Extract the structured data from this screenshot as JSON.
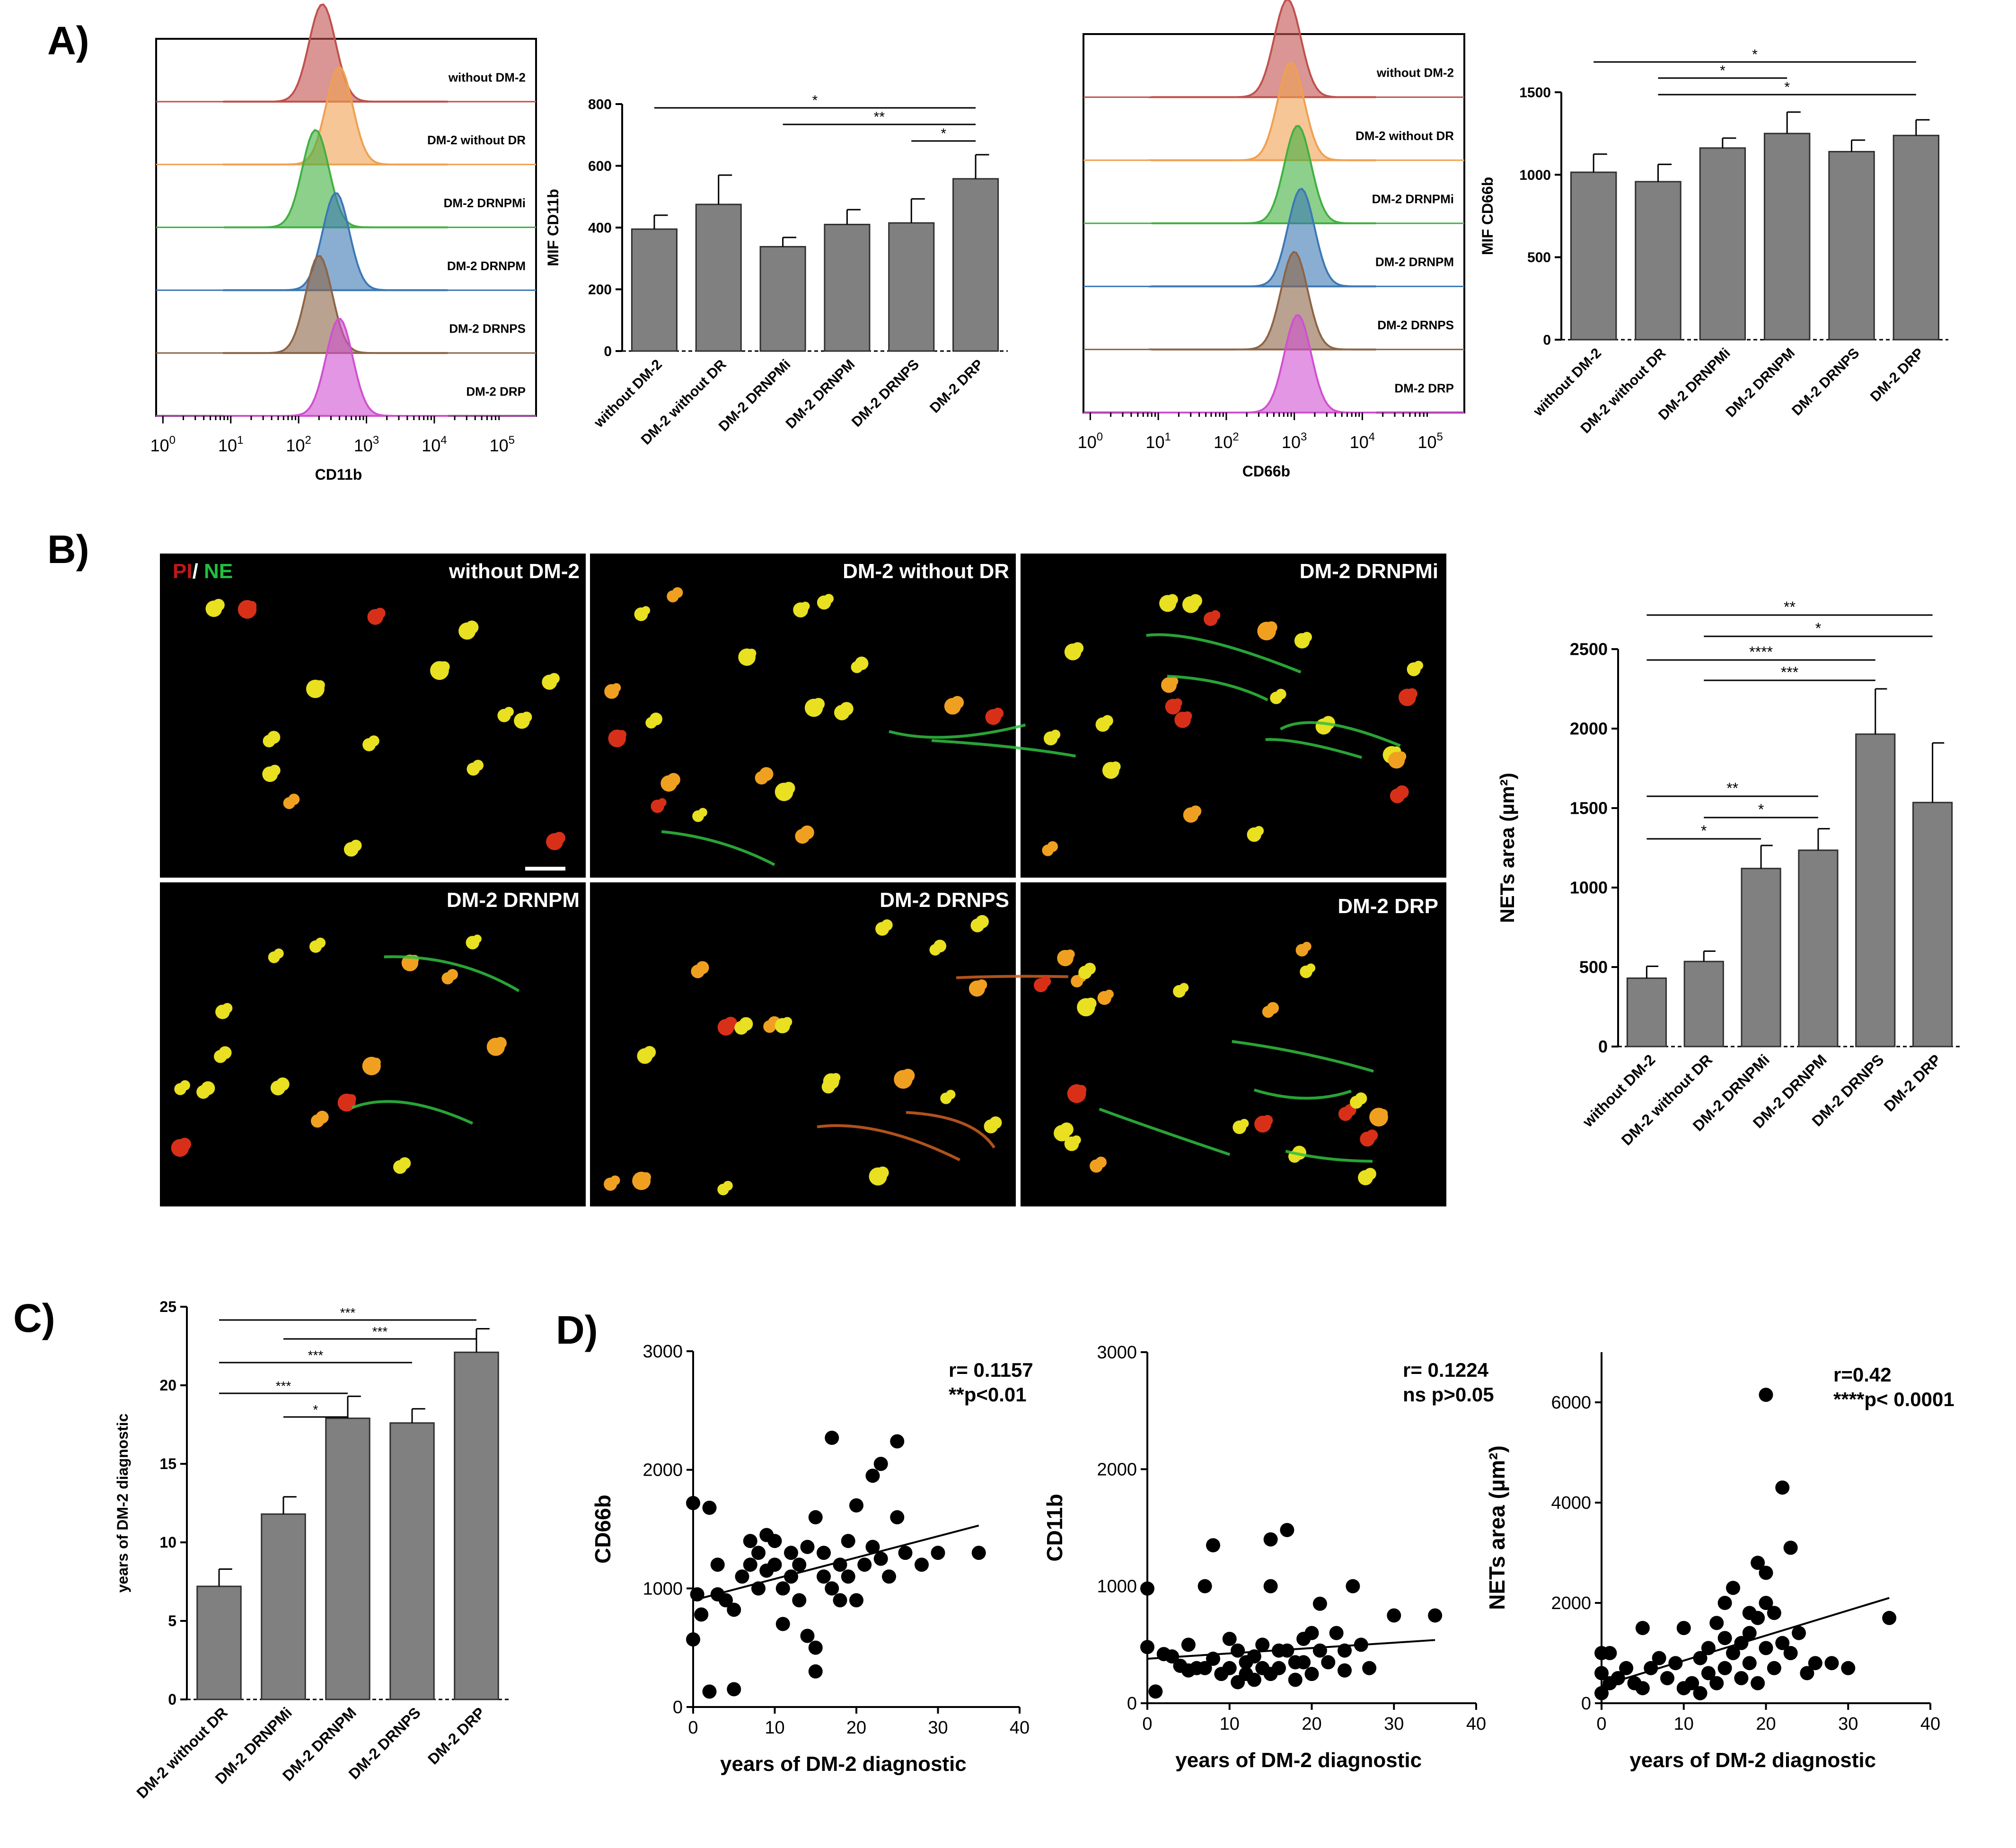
{
  "panel_labels": {
    "a": "A)",
    "b": "B)",
    "c": "C)",
    "d": "D)"
  },
  "histograms": {
    "cd11b": {
      "xlabel": "CD11b",
      "rows": [
        {
          "label": "without DM-2",
          "color": "#C0504D"
        },
        {
          "label": "DM-2 without DR",
          "color": "#F0A050"
        },
        {
          "label": "DM-2 DRNPMi",
          "color": "#40B040"
        },
        {
          "label": "DM-2 DRNPM",
          "color": "#3C78B4"
        },
        {
          "label": "DM-2 DRNPS",
          "color": "#8C6446"
        },
        {
          "label": "DM-2 DRP",
          "color": "#D050D0"
        }
      ],
      "peaks_log10": [
        2.35,
        2.6,
        2.25,
        2.55,
        2.3,
        2.6
      ]
    },
    "cd66b": {
      "xlabel": "CD66b",
      "rows": [
        {
          "label": "without DM-2",
          "color": "#C0504D"
        },
        {
          "label": "DM-2 without DR",
          "color": "#F0A050"
        },
        {
          "label": "DM-2 DRNPMi",
          "color": "#40B040"
        },
        {
          "label": "DM-2 DRNPM",
          "color": "#3C78B4"
        },
        {
          "label": "DM-2 DRNPS",
          "color": "#8C6446"
        },
        {
          "label": "DM-2 DRP",
          "color": "#D050D0"
        }
      ],
      "peaks_log10": [
        2.9,
        2.95,
        3.05,
        3.1,
        3.0,
        3.05
      ]
    },
    "ticks": [
      {
        "base": "10",
        "exp": "0"
      },
      {
        "base": "10",
        "exp": "1"
      },
      {
        "base": "10",
        "exp": "2"
      },
      {
        "base": "10",
        "exp": "3"
      },
      {
        "base": "10",
        "exp": "4"
      },
      {
        "base": "10",
        "exp": "5"
      }
    ]
  },
  "chart_data": [
    {
      "id": "mif-cd11b",
      "type": "bar",
      "categories": [
        "without DM-2",
        "DM-2 without DR",
        "DM-2 DRNPMi",
        "DM-2 DRNPM",
        "DM-2 DRNPS",
        "DM-2 DRP"
      ],
      "values": [
        395,
        475,
        338,
        410,
        415,
        558
      ],
      "errors": [
        45,
        95,
        30,
        48,
        78,
        78
      ],
      "ylabel": "MIF CD11b",
      "ylim": [
        0,
        800
      ],
      "yticks": [
        "0",
        "200",
        "400",
        "600",
        "800"
      ],
      "significance": [
        {
          "from": 0,
          "to": 5,
          "stars": "*"
        },
        {
          "from": 2,
          "to": 5,
          "stars": "**"
        },
        {
          "from": 4,
          "to": 5,
          "stars": "*"
        }
      ]
    },
    {
      "id": "mif-cd66b",
      "type": "bar",
      "categories": [
        "without DM-2",
        "DM-2 without DR",
        "DM-2 DRNPMi",
        "DM-2 DRNPM",
        "DM-2 DRNPS",
        "DM-2 DRP"
      ],
      "values": [
        1015,
        958,
        1162,
        1250,
        1140,
        1238
      ],
      "errors": [
        110,
        105,
        60,
        130,
        70,
        95
      ],
      "ylabel": "MIF CD66b",
      "ylim": [
        0,
        1500
      ],
      "yticks": [
        "0",
        "500",
        "1000",
        "1500"
      ],
      "significance": [
        {
          "from": 0,
          "to": 5,
          "stars": "*"
        },
        {
          "from": 1,
          "to": 3,
          "stars": "*"
        },
        {
          "from": 1,
          "to": 5,
          "stars": "*"
        }
      ]
    },
    {
      "id": "nets-area",
      "type": "bar",
      "categories": [
        "without DM-2",
        "DM-2 without DR",
        "DM-2 DRNPMi",
        "DM-2 DRNPM",
        "DM-2 DRNPS",
        "DM-2 DRP"
      ],
      "values": [
        430,
        535,
        1120,
        1235,
        1965,
        1535
      ],
      "errors": [
        75,
        65,
        145,
        135,
        285,
        375
      ],
      "ylabel": "NETs area (µm²)",
      "ylim": [
        0,
        2500
      ],
      "yticks": [
        "0",
        "500",
        "1000",
        "1500",
        "2000",
        "2500"
      ],
      "significance": [
        {
          "from": 0,
          "to": 5,
          "stars": "**"
        },
        {
          "from": 1,
          "to": 5,
          "stars": "*"
        },
        {
          "from": 0,
          "to": 4,
          "stars": "****"
        },
        {
          "from": 1,
          "to": 4,
          "stars": "***"
        },
        {
          "from": 0,
          "to": 3,
          "stars": "**"
        },
        {
          "from": 1,
          "to": 3,
          "stars": "*"
        },
        {
          "from": 0,
          "to": 2,
          "stars": "*"
        }
      ]
    },
    {
      "id": "years-dm2",
      "type": "bar",
      "categories": [
        "DM-2 without DR",
        "DM-2 DRNPMi",
        "DM-2 DRNPM",
        "DM-2 DRNPS",
        "DM-2 DRP"
      ],
      "values": [
        7.2,
        11.8,
        17.9,
        17.6,
        22.1
      ],
      "errors": [
        1.1,
        1.1,
        1.4,
        0.9,
        1.5
      ],
      "ylabel": "years of DM-2 diagnostic",
      "ylim": [
        0,
        25
      ],
      "yticks": [
        "0",
        "5",
        "10",
        "15",
        "20",
        "25"
      ],
      "significance": [
        {
          "from": 0,
          "to": 4,
          "stars": "***"
        },
        {
          "from": 1,
          "to": 4,
          "stars": "***"
        },
        {
          "from": 0,
          "to": 3,
          "stars": "***"
        },
        {
          "from": 0,
          "to": 2,
          "stars": "***"
        },
        {
          "from": 1,
          "to": 2,
          "stars": "*"
        }
      ]
    },
    {
      "id": "scatter-cd66b",
      "type": "scatter",
      "xlabel": "years of DM-2 diagnostic",
      "ylabel": "CD66b",
      "xlim": [
        0,
        40
      ],
      "ylim": [
        0,
        3000
      ],
      "xticks": [
        "0",
        "10",
        "20",
        "30",
        "40"
      ],
      "yticks": [
        "0",
        "1000",
        "2000",
        "3000"
      ],
      "annotation": [
        "r= 0.1157",
        "**p<0.01"
      ],
      "trend": {
        "x0": 0,
        "y0": 900,
        "x1": 35,
        "y1": 1530
      },
      "points": [
        [
          0,
          1720
        ],
        [
          0,
          570
        ],
        [
          0.5,
          950
        ],
        [
          1,
          780
        ],
        [
          2,
          130
        ],
        [
          2,
          1680
        ],
        [
          3,
          950
        ],
        [
          3,
          1200
        ],
        [
          4,
          900
        ],
        [
          5,
          150
        ],
        [
          5,
          820
        ],
        [
          6,
          1100
        ],
        [
          7,
          1200
        ],
        [
          7,
          1400
        ],
        [
          8,
          1300
        ],
        [
          8,
          1000
        ],
        [
          9,
          1450
        ],
        [
          9,
          1150
        ],
        [
          10,
          1400
        ],
        [
          10,
          1200
        ],
        [
          11,
          700
        ],
        [
          11,
          1000
        ],
        [
          12,
          1300
        ],
        [
          12,
          1100
        ],
        [
          13,
          900
        ],
        [
          13,
          1200
        ],
        [
          14,
          1350
        ],
        [
          14,
          600
        ],
        [
          15,
          1600
        ],
        [
          15,
          500
        ],
        [
          15,
          300
        ],
        [
          16,
          1300
        ],
        [
          16,
          1100
        ],
        [
          17,
          2270
        ],
        [
          17,
          1000
        ],
        [
          18,
          1200
        ],
        [
          18,
          900
        ],
        [
          19,
          1400
        ],
        [
          19,
          1100
        ],
        [
          20,
          1700
        ],
        [
          20,
          900
        ],
        [
          21,
          1200
        ],
        [
          22,
          1350
        ],
        [
          22,
          1950
        ],
        [
          23,
          2050
        ],
        [
          23,
          1250
        ],
        [
          24,
          1100
        ],
        [
          25,
          2240
        ],
        [
          25,
          1600
        ],
        [
          26,
          1300
        ],
        [
          28,
          1200
        ],
        [
          30,
          1300
        ],
        [
          35,
          1300
        ]
      ]
    },
    {
      "id": "scatter-cd11b",
      "type": "scatter",
      "xlabel": "years of DM-2 diagnostic",
      "ylabel": "CD11b",
      "xlim": [
        0,
        40
      ],
      "ylim": [
        0,
        3000
      ],
      "xticks": [
        "0",
        "10",
        "20",
        "30",
        "40"
      ],
      "yticks": [
        "0",
        "1000",
        "2000",
        "3000"
      ],
      "annotation": [
        "r= 0.1224",
        "ns p>0.05"
      ],
      "trend": {
        "x0": 0,
        "y0": 380,
        "x1": 35,
        "y1": 540
      },
      "points": [
        [
          0,
          980
        ],
        [
          0,
          480
        ],
        [
          1,
          100
        ],
        [
          2,
          420
        ],
        [
          3,
          400
        ],
        [
          4,
          320
        ],
        [
          5,
          500
        ],
        [
          5,
          280
        ],
        [
          6,
          300
        ],
        [
          7,
          1000
        ],
        [
          7,
          300
        ],
        [
          8,
          1350
        ],
        [
          8,
          380
        ],
        [
          9,
          250
        ],
        [
          10,
          300
        ],
        [
          10,
          550
        ],
        [
          11,
          450
        ],
        [
          11,
          180
        ],
        [
          12,
          350
        ],
        [
          12,
          250
        ],
        [
          13,
          400
        ],
        [
          13,
          200
        ],
        [
          14,
          500
        ],
        [
          14,
          300
        ],
        [
          15,
          1400
        ],
        [
          15,
          1000
        ],
        [
          15,
          250
        ],
        [
          16,
          450
        ],
        [
          16,
          300
        ],
        [
          17,
          1480
        ],
        [
          17,
          450
        ],
        [
          18,
          350
        ],
        [
          18,
          200
        ],
        [
          19,
          550
        ],
        [
          19,
          350
        ],
        [
          20,
          600
        ],
        [
          20,
          250
        ],
        [
          21,
          850
        ],
        [
          21,
          450
        ],
        [
          22,
          350
        ],
        [
          23,
          600
        ],
        [
          24,
          450
        ],
        [
          24,
          280
        ],
        [
          25,
          1000
        ],
        [
          26,
          500
        ],
        [
          27,
          300
        ],
        [
          30,
          750
        ],
        [
          35,
          750
        ]
      ]
    },
    {
      "id": "scatter-nets",
      "type": "scatter",
      "xlabel": "years of DM-2 diagnostic",
      "ylabel": "NETs area (µm²)",
      "xlim": [
        0,
        40
      ],
      "ylim": [
        0,
        7000
      ],
      "xticks": [
        "0",
        "10",
        "20",
        "30",
        "40"
      ],
      "yticks": [
        "0",
        "2000",
        "4000",
        "6000"
      ],
      "annotation": [
        "r=0.42",
        "****p< 0.0001"
      ],
      "trend": {
        "x0": 0,
        "y0": 350,
        "x1": 35,
        "y1": 2100
      },
      "points": [
        [
          0,
          1000
        ],
        [
          0,
          600
        ],
        [
          0,
          200
        ],
        [
          1,
          1000
        ],
        [
          1,
          400
        ],
        [
          2,
          500
        ],
        [
          3,
          700
        ],
        [
          4,
          400
        ],
        [
          5,
          1500
        ],
        [
          5,
          300
        ],
        [
          6,
          700
        ],
        [
          7,
          900
        ],
        [
          8,
          500
        ],
        [
          9,
          800
        ],
        [
          10,
          1500
        ],
        [
          10,
          300
        ],
        [
          11,
          400
        ],
        [
          12,
          900
        ],
        [
          12,
          200
        ],
        [
          13,
          1100
        ],
        [
          13,
          600
        ],
        [
          14,
          1600
        ],
        [
          14,
          400
        ],
        [
          15,
          2000
        ],
        [
          15,
          1300
        ],
        [
          15,
          700
        ],
        [
          16,
          2300
        ],
        [
          16,
          1000
        ],
        [
          17,
          1200
        ],
        [
          17,
          500
        ],
        [
          18,
          1800
        ],
        [
          18,
          1400
        ],
        [
          18,
          800
        ],
        [
          19,
          2800
        ],
        [
          19,
          1700
        ],
        [
          19,
          400
        ],
        [
          20,
          6150
        ],
        [
          20,
          2600
        ],
        [
          20,
          2000
        ],
        [
          20,
          1100
        ],
        [
          21,
          1800
        ],
        [
          21,
          700
        ],
        [
          22,
          4300
        ],
        [
          22,
          1200
        ],
        [
          23,
          3100
        ],
        [
          23,
          1000
        ],
        [
          24,
          1400
        ],
        [
          25,
          600
        ],
        [
          26,
          800
        ],
        [
          28,
          800
        ],
        [
          30,
          700
        ],
        [
          35,
          1700
        ]
      ]
    }
  ],
  "micrographs": {
    "tiles": [
      {
        "label": "without DM-2"
      },
      {
        "label": "DM-2 without DR"
      },
      {
        "label": "DM-2  DRNPMi"
      },
      {
        "label": "DM-2  DRNPM"
      },
      {
        "label": "DM-2  DRNPS"
      },
      {
        "label": "DM-2  DRP"
      }
    ],
    "legend_pi": "PI",
    "legend_sep": "/ ",
    "legend_ne": "NE"
  }
}
